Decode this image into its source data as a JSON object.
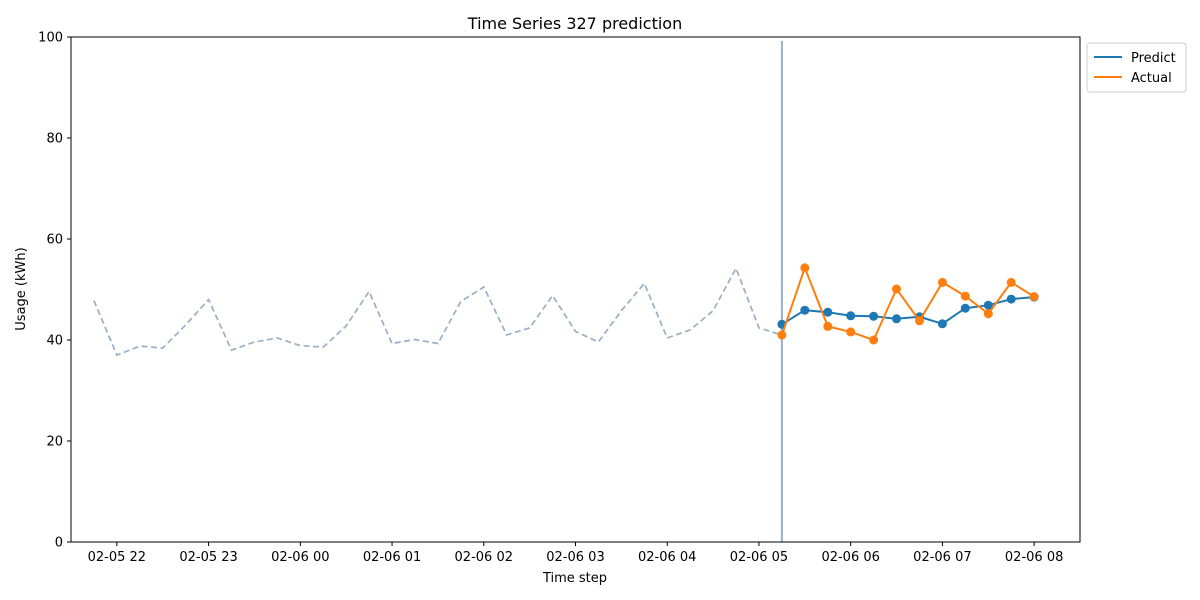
{
  "chart_data": {
    "type": "line",
    "title": "Time Series 327 prediction",
    "xlabel": "Time step",
    "ylabel": "Usage (kWh)",
    "ylim": [
      0,
      100
    ],
    "y_ticks": [
      "0",
      "20",
      "40",
      "60",
      "80",
      "100"
    ],
    "x_ticks": [
      {
        "label": "02-05 22",
        "t": "02-05 22:00"
      },
      {
        "label": "02-05 23",
        "t": "02-05 23:00"
      },
      {
        "label": "02-06 00",
        "t": "02-06 00:00"
      },
      {
        "label": "02-06 01",
        "t": "02-06 01:00"
      },
      {
        "label": "02-06 02",
        "t": "02-06 02:00"
      },
      {
        "label": "02-06 03",
        "t": "02-06 03:00"
      },
      {
        "label": "02-06 04",
        "t": "02-06 04:00"
      },
      {
        "label": "02-06 05",
        "t": "02-06 05:00"
      },
      {
        "label": "02-06 06",
        "t": "02-06 06:00"
      },
      {
        "label": "02-06 07",
        "t": "02-06 07:00"
      },
      {
        "label": "02-06 08",
        "t": "02-06 08:00"
      }
    ],
    "xlim": [
      "02-05 21:30",
      "02-06 08:30"
    ],
    "grid": false,
    "legend_position": "outside-top-right",
    "forecast_start": "02-06 05:15",
    "history": {
      "color": "#97b0c8",
      "style": "dashed",
      "x": [
        "02-05 21:45",
        "02-05 22:00",
        "02-05 22:15",
        "02-05 22:30",
        "02-05 22:45",
        "02-05 23:00",
        "02-05 23:15",
        "02-05 23:30",
        "02-05 23:45",
        "02-06 00:00",
        "02-06 00:15",
        "02-06 00:30",
        "02-06 00:45",
        "02-06 01:00",
        "02-06 01:15",
        "02-06 01:30",
        "02-06 01:45",
        "02-06 02:00",
        "02-06 02:15",
        "02-06 02:30",
        "02-06 02:45",
        "02-06 03:00",
        "02-06 03:15",
        "02-06 03:30",
        "02-06 03:45",
        "02-06 04:00",
        "02-06 04:15",
        "02-06 04:30",
        "02-06 04:45",
        "02-06 05:00",
        "02-06 05:15"
      ],
      "values": [
        47.8,
        37.0,
        38.8,
        38.4,
        43.0,
        48.0,
        38.0,
        39.6,
        40.4,
        38.9,
        38.6,
        42.8,
        49.6,
        39.3,
        40.1,
        39.3,
        47.6,
        50.5,
        41.0,
        42.4,
        48.8,
        41.7,
        39.6,
        45.8,
        51.2,
        40.4,
        42.0,
        45.8,
        54.2,
        42.4,
        41.0
      ]
    },
    "series": [
      {
        "name": "Predict",
        "color": "#1f77b4",
        "x": [
          "02-06 05:15",
          "02-06 05:30",
          "02-06 05:45",
          "02-06 06:00",
          "02-06 06:15",
          "02-06 06:30",
          "02-06 06:45",
          "02-06 07:00",
          "02-06 07:15",
          "02-06 07:30",
          "02-06 07:45",
          "02-06 08:00"
        ],
        "values": [
          43.1,
          45.9,
          45.5,
          44.8,
          44.7,
          44.2,
          44.6,
          43.2,
          46.3,
          46.9,
          48.1,
          48.5
        ]
      },
      {
        "name": "Actual",
        "color": "#ff7f0e",
        "x": [
          "02-06 05:15",
          "02-06 05:30",
          "02-06 05:45",
          "02-06 06:00",
          "02-06 06:15",
          "02-06 06:30",
          "02-06 06:45",
          "02-06 07:00",
          "02-06 07:15",
          "02-06 07:30",
          "02-06 07:45",
          "02-06 08:00"
        ],
        "values": [
          41.0,
          54.3,
          42.7,
          41.6,
          40.0,
          50.1,
          43.8,
          51.4,
          48.7,
          45.2,
          51.4,
          48.6
        ]
      }
    ]
  }
}
